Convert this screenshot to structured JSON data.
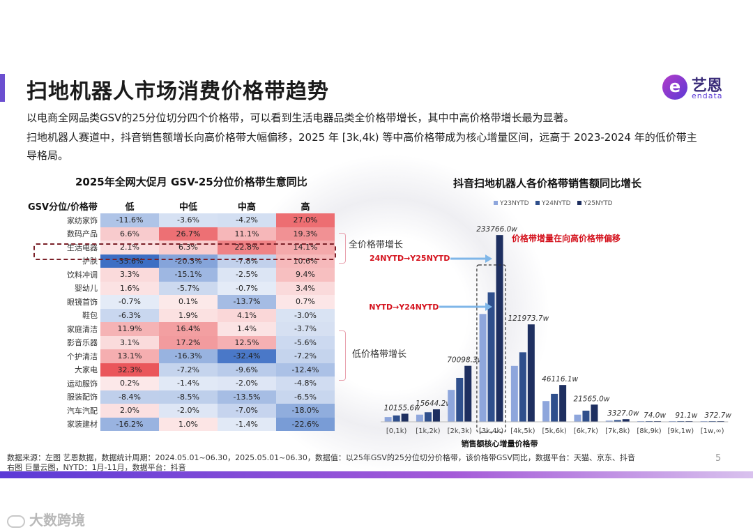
{
  "header": {
    "title": "扫地机器人市场消费价格带趋势",
    "logo_cn": "艺恩",
    "logo_en": "endata",
    "desc": [
      "以电商全网品类GSV的25分位切分四个价格带，可以看到生活电器品类全价格带增长，其中中高价格带增长最为显著。",
      "扫地机器人赛道中，抖音销售额增长向高价格带大幅偏移，2025 年 [3k,4k) 等中高价格带成为核心增量区间，远高于 2023-2024 年的低价带主",
      "导格局。"
    ]
  },
  "table": {
    "title": "2025年全网大促月 GSV-25分位价格带生意同比",
    "row_header": "GSV分位/价格带",
    "columns": [
      "低",
      "中低",
      "中高",
      "高"
    ],
    "rows": [
      {
        "category": "家纺家饰",
        "values": [
          "-11.6%",
          "-3.6%",
          "-4.2%",
          "27.0%"
        ]
      },
      {
        "category": "数码产品",
        "values": [
          "6.6%",
          "26.7%",
          "11.1%",
          "19.3%"
        ]
      },
      {
        "category": "生活电器",
        "values": [
          "2.1%",
          "6.3%",
          "22.8%",
          "14.1%"
        ]
      },
      {
        "category": "护肤",
        "values": [
          "-35.6%",
          "-20.3%",
          "-7.8%",
          "10.6%"
        ]
      },
      {
        "category": "饮料冲调",
        "values": [
          "3.3%",
          "-15.1%",
          "-2.5%",
          "9.4%"
        ]
      },
      {
        "category": "婴幼儿",
        "values": [
          "1.6%",
          "-5.7%",
          "-0.7%",
          "3.4%"
        ]
      },
      {
        "category": "眼镜首饰",
        "values": [
          "-0.7%",
          "0.1%",
          "-13.7%",
          "0.7%"
        ]
      },
      {
        "category": "鞋包",
        "values": [
          "-6.3%",
          "1.9%",
          "4.1%",
          "-3.0%"
        ]
      },
      {
        "category": "家庭清洁",
        "values": [
          "11.9%",
          "16.4%",
          "1.4%",
          "-3.7%"
        ]
      },
      {
        "category": "影音乐器",
        "values": [
          "3.1%",
          "17.2%",
          "12.5%",
          "-5.6%"
        ]
      },
      {
        "category": "个护清洁",
        "values": [
          "13.1%",
          "-16.3%",
          "-32.4%",
          "-7.2%"
        ]
      },
      {
        "category": "大家电",
        "values": [
          "32.3%",
          "-7.2%",
          "-9.6%",
          "-12.4%"
        ]
      },
      {
        "category": "运动服饰",
        "values": [
          "0.2%",
          "-1.4%",
          "-2.0%",
          "-4.8%"
        ]
      },
      {
        "category": "服装配饰",
        "values": [
          "-8.4%",
          "-8.5%",
          "-13.5%",
          "-6.5%"
        ]
      },
      {
        "category": "汽车汽配",
        "values": [
          "2.0%",
          "-2.0%",
          "-7.0%",
          "-18.0%"
        ]
      },
      {
        "category": "家装建材",
        "values": [
          "-16.2%",
          "1.0%",
          "-1.4%",
          "-22.6%"
        ]
      }
    ],
    "annotations": {
      "all_growth": "全价格带增长",
      "low_growth": "低价格带增长"
    },
    "colors": {
      "positive": "#e84a4f",
      "negative": "#3d6fc4"
    }
  },
  "chart_data": {
    "type": "bar",
    "title": "抖音扫地机器人各价格带销售额同比增长",
    "categories": [
      "[0,1k)",
      "[1k,2k)",
      "[2k,3k)",
      "[3k,4k)",
      "[4k,5k)",
      "[5k,6k)",
      "[6k,7k)",
      "[7k,8k)",
      "[8k,9k)",
      "[9k,1w)",
      "[1w,∞)"
    ],
    "series": [
      {
        "name": "Y23NYTD",
        "color": "#8ea6dc",
        "values": [
          6000,
          9000,
          40000,
          135000,
          70000,
          26000,
          9000,
          1500,
          300,
          80,
          200
        ]
      },
      {
        "name": "Y24NYTD",
        "color": "#2f4f8c",
        "values": [
          8000,
          12000,
          55000,
          162000,
          87000,
          35000,
          14000,
          2200,
          450,
          90,
          300
        ]
      },
      {
        "name": "Y25NYTD",
        "color": "#1e2f60",
        "values": [
          10155.6,
          15644.2,
          70098.3,
          233766.0,
          121973.7,
          46116.1,
          21565.0,
          3327.0,
          74.0,
          91.1,
          372.7
        ]
      }
    ],
    "data_labels": [
      "10155.6w",
      "15644.2w",
      "70098.3w",
      "233766.0w",
      "121973.7w",
      "46116.1w",
      "21565.0w",
      "3327.0w",
      "74.0w",
      "91.1w",
      "372.7w"
    ],
    "ylim": [
      0,
      240000
    ],
    "legend_position": "top-center",
    "grid": false,
    "highlight_category": "[3k,4k)",
    "highlight_label": "销售额核心增量价格带",
    "annotations": {
      "shift_note": "价格带增量在向高价格带偏移",
      "arrow_y24_y25": "Y24NYTD→Y25NYTD",
      "arrow_y23_y24": "Y23NYTD→Y24NYTD"
    }
  },
  "footer": {
    "source_line1": "数据来源：左图 艺恩数据，数据统计周期：2024.05.01~06.30，2025.05.01~06.30，数据值：以25年GSV的25分位切分价格带，该价格带GSV同比，数据平台：天猫、京东、抖音",
    "source_line2": "右图 巨量云图，NYTD：1月-11月，数据平台：抖音",
    "page_number": "5",
    "watermark": "大数跨境"
  }
}
